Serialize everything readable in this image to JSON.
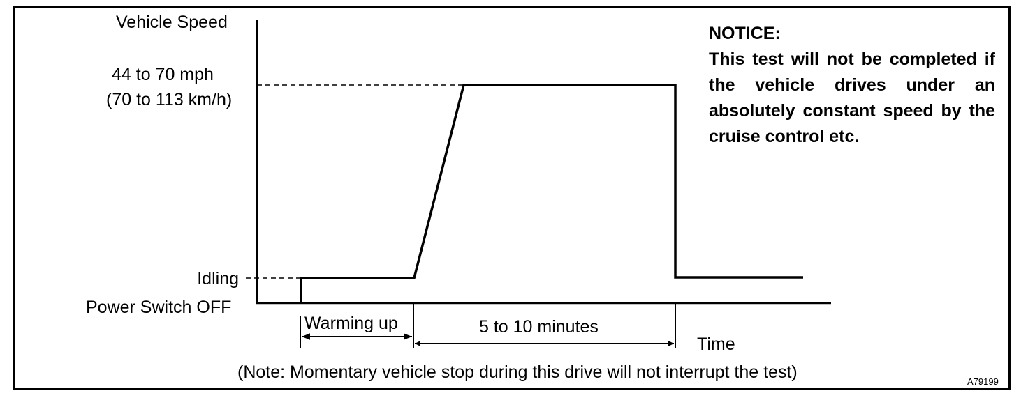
{
  "diagram": {
    "y_axis_label": "Vehicle Speed",
    "speed_level_line1": "44 to 70 mph",
    "speed_level_line2": "(70 to 113 km/h)",
    "idle_level_label": "Idling",
    "off_level_label": "Power Switch OFF",
    "x_axis_label": "Time",
    "warming_label": "Warming up",
    "duration_label": "5 to 10 minutes",
    "note": "(Note: Momentary vehicle stop during this drive will not interrupt the test)",
    "figure_code": "A79199"
  },
  "notice": {
    "title": "NOTICE:",
    "body": "This test will not be completed if the vehicle drives under an absolutely constant speed by the cruise control etc."
  }
}
